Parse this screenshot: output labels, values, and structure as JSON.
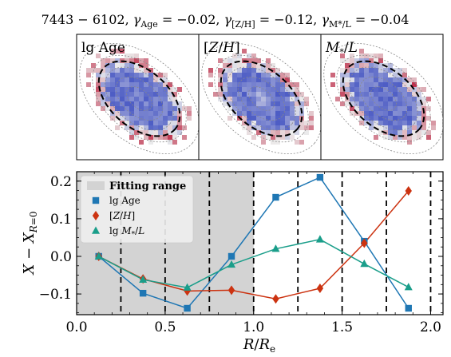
{
  "figure_title": "7443 − 6102,  γ_Age = −0.02,  γ_[Z/H] = −0.12,  γ_M*/L = −0.04",
  "maps": [
    {
      "label": "lg Age"
    },
    {
      "label": "[Z/H]"
    },
    {
      "label": "M*/L"
    }
  ],
  "colors": {
    "age": "#1f77b4",
    "metal": "#cc3311",
    "ml": "#1a9e8a",
    "shade": "#d3d3d3",
    "map_blue": "#3b4cc0",
    "map_red": "#b40426"
  },
  "chart_data": {
    "type": "line",
    "xlabel": "R/R_e",
    "ylabel": "X − X_{R=0}",
    "xlim": [
      0.0,
      2.07
    ],
    "ylim": [
      -0.155,
      0.225
    ],
    "xticks": [
      0.0,
      0.5,
      1.0,
      1.5,
      2.0
    ],
    "xtick_labels": [
      "0.0",
      "0.5",
      "1.0",
      "1.5",
      "2.0"
    ],
    "yticks": [
      -0.1,
      0.0,
      0.1,
      0.2
    ],
    "ytick_labels": [
      "−0.1",
      "0.0",
      "0.1",
      "0.2"
    ],
    "x": [
      0.125,
      0.375,
      0.625,
      0.875,
      1.125,
      1.375,
      1.625,
      1.875
    ],
    "fitting_range": {
      "from": 0.0,
      "to": 1.0,
      "label": "Fitting range"
    },
    "vlines": [
      0.25,
      0.5,
      0.75,
      1.0,
      1.25,
      1.5,
      1.75,
      2.0
    ],
    "series": [
      {
        "name": "lg Age",
        "marker": "square",
        "color": "#1f77b4",
        "values": [
          0.0,
          -0.098,
          -0.138,
          0.0,
          0.157,
          0.21,
          0.04,
          -0.138
        ]
      },
      {
        "name": "[Z/H]",
        "marker": "diamond",
        "color": "#cc3311",
        "values": [
          0.0,
          -0.06,
          -0.092,
          -0.09,
          -0.113,
          -0.085,
          0.035,
          0.174
        ]
      },
      {
        "name": "lg M*/L",
        "marker": "triangle",
        "color": "#1a9e8a",
        "values": [
          0.0,
          -0.062,
          -0.083,
          -0.022,
          0.02,
          0.045,
          -0.02,
          -0.082
        ]
      }
    ],
    "legend_position": "upper-left",
    "grid": false
  }
}
